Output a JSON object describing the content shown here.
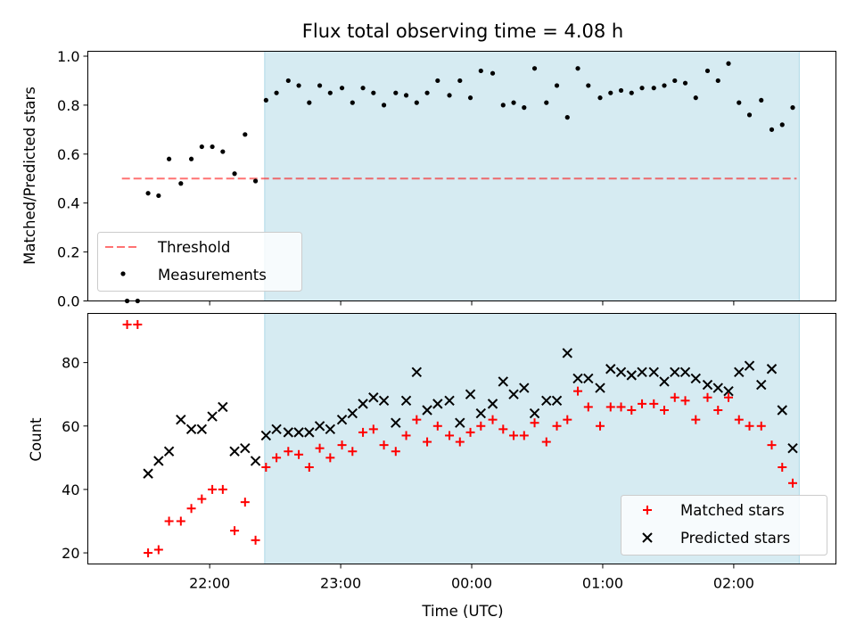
{
  "colors": {
    "shade": "#add8e6",
    "threshold": "#ff0000",
    "measurements": "#000000",
    "matched": "#ff0000",
    "predicted": "#000000"
  },
  "chart_data": [
    {
      "type": "scatter",
      "title": "Flux total observing time = 4.08 h",
      "xlabel": "",
      "ylabel": "Matched/Predicted stars",
      "x_unit": "hours relative to 00:00 UTC",
      "xlim": [
        -2.93,
        2.78
      ],
      "ylim": [
        0.0,
        1.02
      ],
      "yticks": [
        "0.0",
        "0.2",
        "0.4",
        "0.6",
        "0.8",
        "1.0"
      ],
      "shaded_interval": [
        -1.58,
        2.5
      ],
      "grid": false,
      "legend": "lower-left",
      "threshold": {
        "name": "Threshold",
        "value": 0.5,
        "x": [
          -2.67,
          2.48
        ]
      },
      "series": [
        {
          "name": "Measurements",
          "x": [
            -2.63,
            -2.55,
            -2.47,
            -2.39,
            -2.31,
            -2.22,
            -2.14,
            -2.06,
            -1.98,
            -1.9,
            -1.81,
            -1.73,
            -1.65,
            -1.57,
            -1.49,
            -1.4,
            -1.32,
            -1.24,
            -1.16,
            -1.08,
            -0.99,
            -0.91,
            -0.83,
            -0.75,
            -0.67,
            -0.58,
            -0.5,
            -0.42,
            -0.34,
            -0.26,
            -0.17,
            -0.09,
            -0.01,
            0.07,
            0.16,
            0.24,
            0.32,
            0.4,
            0.48,
            0.57,
            0.65,
            0.73,
            0.81,
            0.89,
            0.98,
            1.06,
            1.14,
            1.22,
            1.3,
            1.39,
            1.47,
            1.55,
            1.63,
            1.71,
            1.8,
            1.88,
            1.96,
            2.04,
            2.12,
            2.21,
            2.29,
            2.37,
            2.45
          ],
          "y": [
            0.0,
            0.0,
            0.44,
            0.43,
            0.58,
            0.48,
            0.58,
            0.63,
            0.63,
            0.61,
            0.52,
            0.68,
            0.49,
            0.82,
            0.85,
            0.9,
            0.88,
            0.81,
            0.88,
            0.85,
            0.87,
            0.81,
            0.87,
            0.85,
            0.8,
            0.85,
            0.84,
            0.81,
            0.85,
            0.9,
            0.84,
            0.9,
            0.83,
            0.94,
            0.93,
            0.8,
            0.81,
            0.79,
            0.95,
            0.81,
            0.88,
            0.75,
            0.95,
            0.88,
            0.83,
            0.85,
            0.86,
            0.85,
            0.87,
            0.87,
            0.88,
            0.9,
            0.89,
            0.83,
            0.94,
            0.9,
            0.97,
            0.81,
            0.76,
            0.82,
            0.7,
            0.72,
            0.79
          ]
        }
      ]
    },
    {
      "type": "scatter",
      "title": "",
      "xlabel": "Time (UTC)",
      "ylabel": "Count",
      "x_unit": "hours relative to 00:00 UTC",
      "xlim": [
        -2.93,
        2.78
      ],
      "ylim": [
        16.5,
        95.5
      ],
      "xtick_values": [
        -2,
        -1,
        0,
        1,
        2
      ],
      "xtick_labels": [
        "22:00",
        "23:00",
        "00:00",
        "01:00",
        "02:00"
      ],
      "yticks": [
        "20",
        "40",
        "60",
        "80"
      ],
      "shaded_interval": [
        -1.58,
        2.5
      ],
      "grid": false,
      "legend": "lower-right",
      "series": [
        {
          "name": "Matched stars",
          "marker": "plus",
          "x": [
            -2.63,
            -2.55,
            -2.47,
            -2.39,
            -2.31,
            -2.22,
            -2.14,
            -2.06,
            -1.98,
            -1.9,
            -1.81,
            -1.73,
            -1.65,
            -1.57,
            -1.49,
            -1.4,
            -1.32,
            -1.24,
            -1.16,
            -1.08,
            -0.99,
            -0.91,
            -0.83,
            -0.75,
            -0.67,
            -0.58,
            -0.5,
            -0.42,
            -0.34,
            -0.26,
            -0.17,
            -0.09,
            -0.01,
            0.07,
            0.16,
            0.24,
            0.32,
            0.4,
            0.48,
            0.57,
            0.65,
            0.73,
            0.81,
            0.89,
            0.98,
            1.06,
            1.14,
            1.22,
            1.3,
            1.39,
            1.47,
            1.55,
            1.63,
            1.71,
            1.8,
            1.88,
            1.96,
            2.04,
            2.12,
            2.21,
            2.29,
            2.37,
            2.45
          ],
          "y": [
            92,
            92,
            20,
            21,
            30,
            30,
            34,
            37,
            40,
            40,
            27,
            36,
            24,
            47,
            50,
            52,
            51,
            47,
            53,
            50,
            54,
            52,
            58,
            59,
            54,
            52,
            57,
            62,
            55,
            60,
            57,
            55,
            58,
            60,
            62,
            59,
            57,
            57,
            61,
            55,
            60,
            62,
            71,
            66,
            60,
            66,
            66,
            65,
            67,
            67,
            65,
            69,
            68,
            62,
            69,
            65,
            69,
            62,
            60,
            60,
            54,
            47,
            42
          ]
        },
        {
          "name": "Predicted stars",
          "marker": "x",
          "x": [
            -2.47,
            -2.39,
            -2.31,
            -2.22,
            -2.14,
            -2.06,
            -1.98,
            -1.9,
            -1.81,
            -1.73,
            -1.65,
            -1.57,
            -1.49,
            -1.4,
            -1.32,
            -1.24,
            -1.16,
            -1.08,
            -0.99,
            -0.91,
            -0.83,
            -0.75,
            -0.67,
            -0.58,
            -0.5,
            -0.42,
            -0.34,
            -0.26,
            -0.17,
            -0.09,
            -0.01,
            0.07,
            0.16,
            0.24,
            0.32,
            0.4,
            0.48,
            0.57,
            0.65,
            0.73,
            0.81,
            0.89,
            0.98,
            1.06,
            1.14,
            1.22,
            1.3,
            1.39,
            1.47,
            1.55,
            1.63,
            1.71,
            1.8,
            1.88,
            1.96,
            2.04,
            2.12,
            2.21,
            2.29,
            2.37,
            2.45
          ],
          "y": [
            45,
            49,
            52,
            62,
            59,
            59,
            63,
            66,
            52,
            53,
            49,
            57,
            59,
            58,
            58,
            58,
            60,
            59,
            62,
            64,
            67,
            69,
            68,
            61,
            68,
            77,
            65,
            67,
            68,
            61,
            70,
            64,
            67,
            74,
            70,
            72,
            64,
            68,
            68,
            83,
            75,
            75,
            72,
            78,
            77,
            76,
            77,
            77,
            74,
            77,
            77,
            75,
            73,
            72,
            71,
            77,
            79,
            73,
            78,
            65,
            53
          ]
        }
      ]
    }
  ]
}
